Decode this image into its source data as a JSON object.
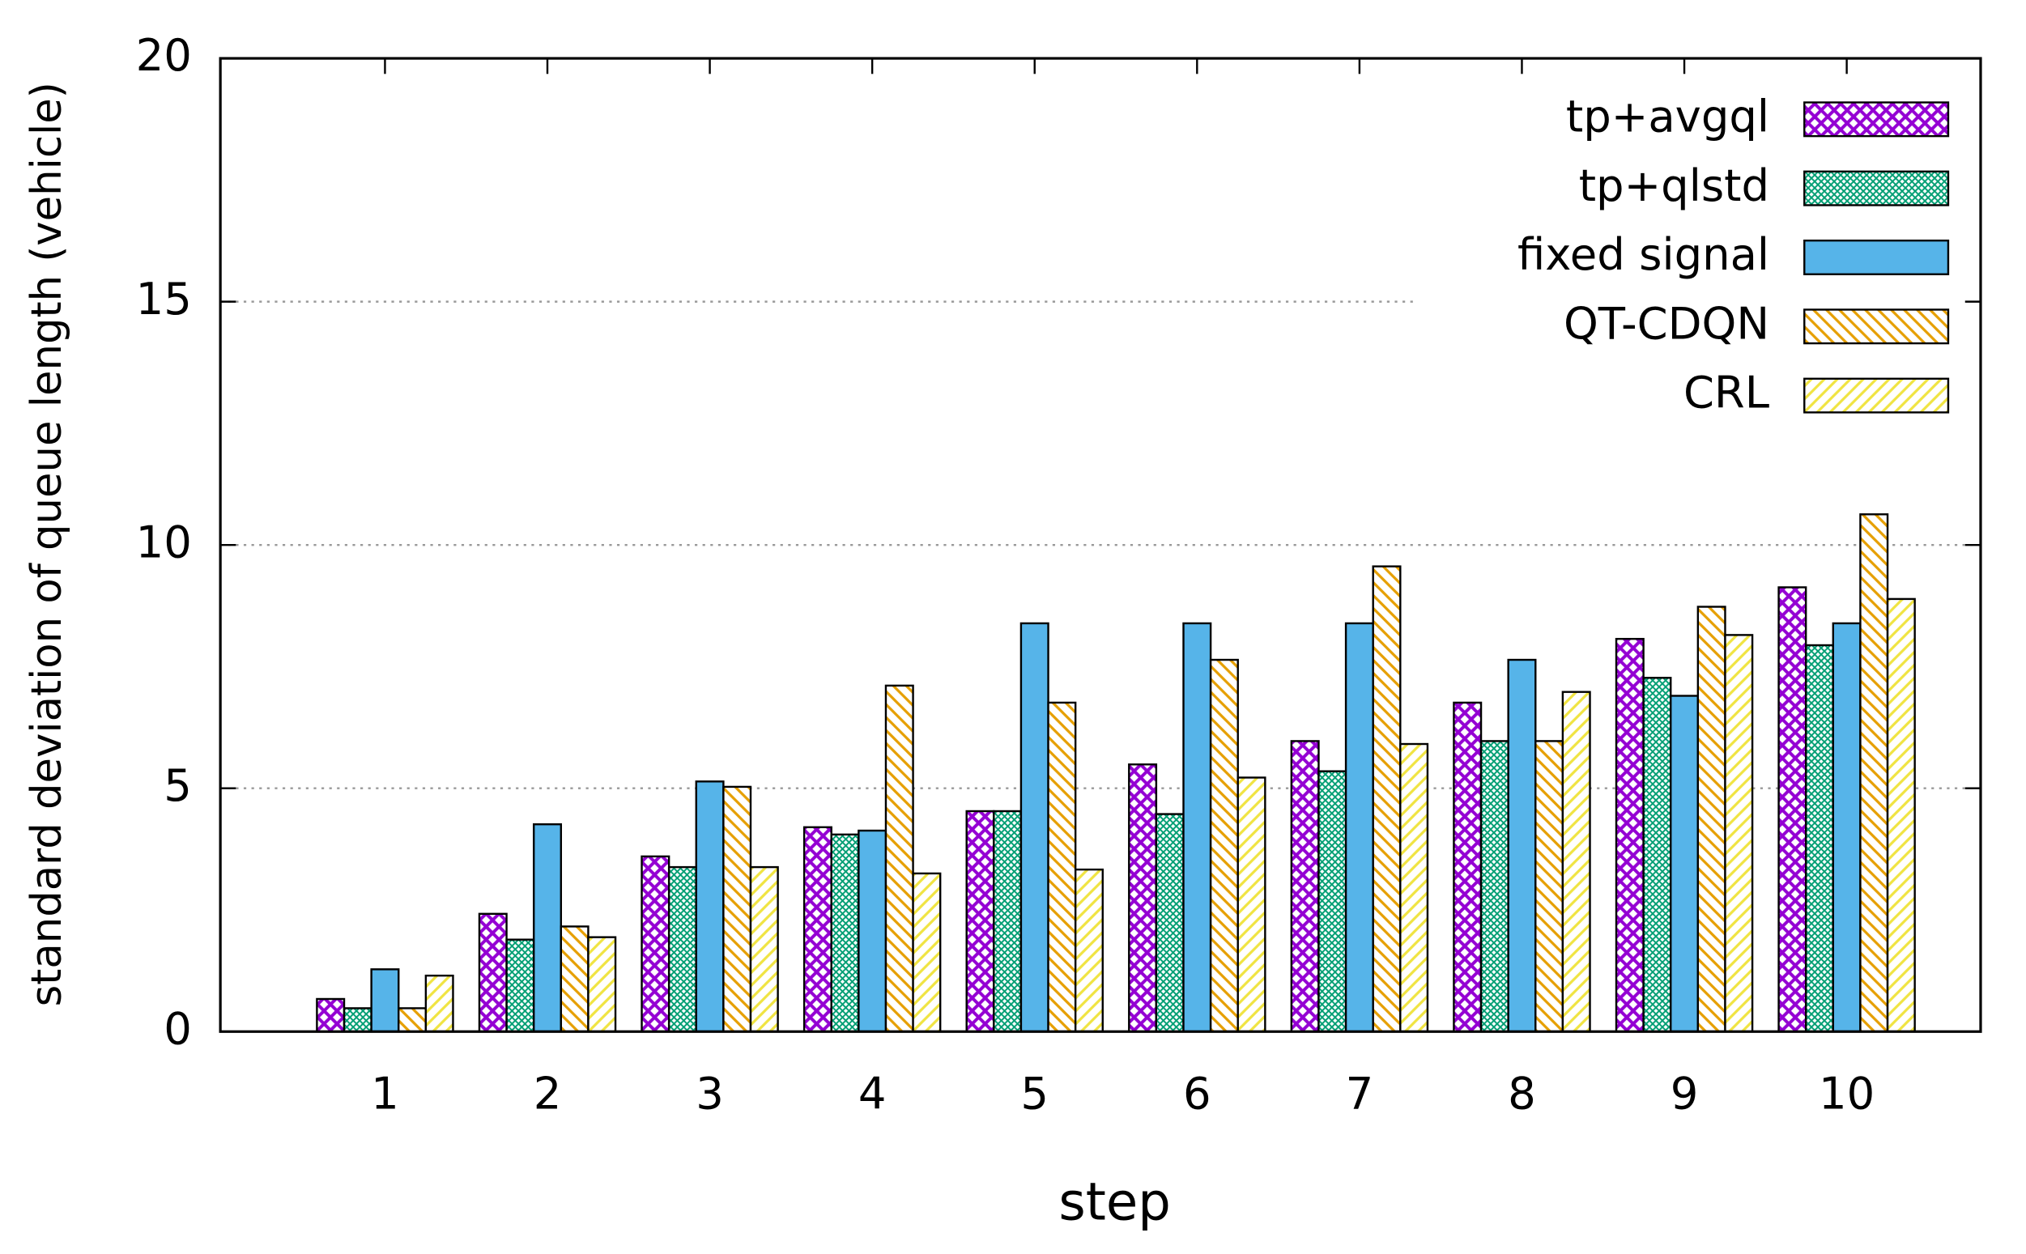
{
  "chart_data": {
    "type": "bar",
    "x_label": "step",
    "y_label": "standard deviation of queue length (vehicle)",
    "categories": [
      "1",
      "2",
      "3",
      "4",
      "5",
      "6",
      "7",
      "8",
      "9",
      "10"
    ],
    "ylim": [
      0,
      20
    ],
    "yticks": [
      0,
      5,
      10,
      15,
      20
    ],
    "grid": true,
    "legend": "top-right",
    "series": [
      {
        "name": "tp+avgql",
        "color": "#9400d3",
        "pattern": "crosshatch",
        "values": [
          0.67,
          2.42,
          3.6,
          4.2,
          4.53,
          5.49,
          5.97,
          6.76,
          8.07,
          9.13
        ]
      },
      {
        "name": "tp+qlstd",
        "color": "#009e73",
        "pattern": "dense-crosshatch",
        "values": [
          0.48,
          1.89,
          3.38,
          4.05,
          4.53,
          4.47,
          5.35,
          5.97,
          7.27,
          7.94
        ]
      },
      {
        "name": "fixed signal",
        "color": "#56b4e9",
        "pattern": "solid",
        "values": [
          1.28,
          4.26,
          5.14,
          4.13,
          8.39,
          8.39,
          8.39,
          7.64,
          6.9,
          8.39
        ]
      },
      {
        "name": "QT-CDQN",
        "color": "#e69f00",
        "pattern": "hatch-back",
        "values": [
          0.48,
          2.16,
          5.03,
          7.11,
          6.76,
          7.64,
          9.56,
          5.97,
          8.73,
          10.63
        ]
      },
      {
        "name": "CRL",
        "color": "#f0e442",
        "pattern": "hatch-forward",
        "values": [
          1.15,
          1.94,
          3.38,
          3.25,
          3.33,
          5.22,
          5.91,
          6.98,
          8.15,
          8.89
        ]
      }
    ]
  }
}
